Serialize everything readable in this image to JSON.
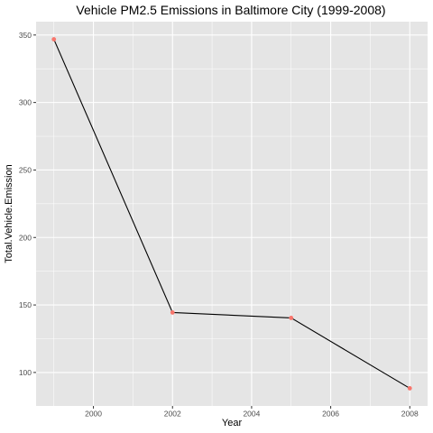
{
  "chart_data": {
    "type": "line",
    "title": "Vehicle PM2.5 Emissions in Baltimore City (1999-2008)",
    "xlabel": "Year",
    "ylabel": "Total.Vehicle.Emission",
    "x": [
      1999,
      2002,
      2005,
      2008
    ],
    "y": [
      346.82,
      144.42,
      140.4,
      88.28
    ],
    "xlim": [
      1998.55,
      2008.45
    ],
    "ylim": [
      75.2,
      359.9
    ],
    "x_ticks": [
      2000,
      2002,
      2004,
      2006,
      2008
    ],
    "x_tick_labels": [
      "2000",
      "2002",
      "2004",
      "2006",
      "2008"
    ],
    "y_ticks": [
      100,
      150,
      200,
      250,
      300,
      350
    ],
    "y_tick_labels": [
      "100",
      "150",
      "200",
      "250",
      "300",
      "350"
    ],
    "grid": true,
    "colors": {
      "panel": "#e5e5e5",
      "grid": "#ffffff",
      "line": "#000000",
      "point": "#f8766d"
    }
  }
}
